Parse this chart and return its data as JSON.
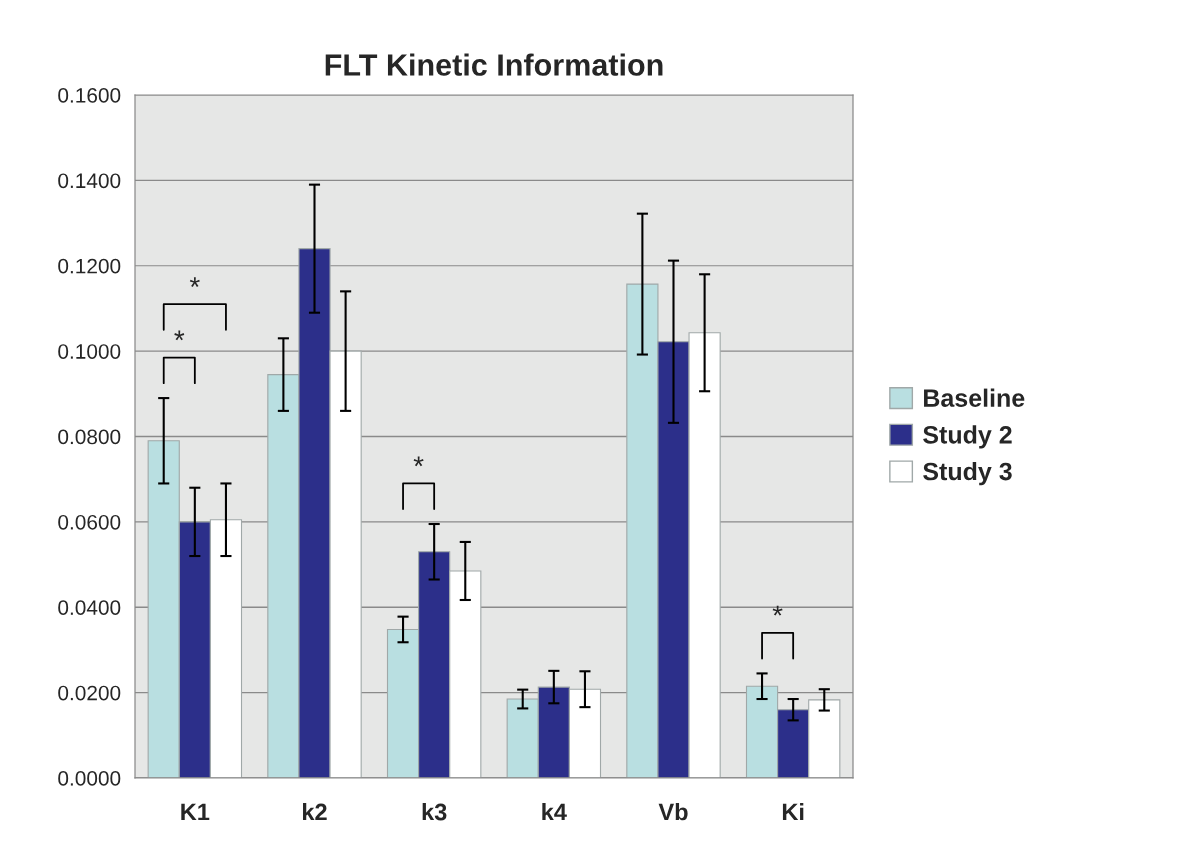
{
  "chart_data": {
    "type": "bar",
    "title": "FLT Kinetic Information",
    "categories": [
      "K1",
      "k2",
      "k3",
      "k4",
      "Vb",
      "Ki"
    ],
    "series": [
      {
        "name": "Baseline",
        "color": "#b9dfe1",
        "values": [
          0.079,
          0.0945,
          0.0348,
          0.0185,
          0.1157,
          0.0215
        ],
        "errors": [
          0.01,
          0.0085,
          0.003,
          0.0022,
          0.0165,
          0.003
        ]
      },
      {
        "name": "Study 2",
        "color": "#2c2f8a",
        "values": [
          0.06,
          0.124,
          0.053,
          0.0213,
          0.1022,
          0.016
        ],
        "errors": [
          0.008,
          0.015,
          0.0065,
          0.0038,
          0.019,
          0.0025
        ]
      },
      {
        "name": "Study 3",
        "color": "#ffffff",
        "values": [
          0.0605,
          0.1,
          0.0485,
          0.0208,
          0.1043,
          0.0183
        ],
        "errors": [
          0.0085,
          0.014,
          0.0068,
          0.0042,
          0.0137,
          0.0025
        ]
      }
    ],
    "ylim": [
      0,
      0.16
    ],
    "yticks": [
      {
        "value": 0,
        "label": "0.0000"
      },
      {
        "value": 0.02,
        "label": "0.0200"
      },
      {
        "value": 0.04,
        "label": "0.0400"
      },
      {
        "value": 0.06,
        "label": "0.0600"
      },
      {
        "value": 0.08,
        "label": "0.0800"
      },
      {
        "value": 0.1,
        "label": "0.1000"
      },
      {
        "value": 0.12,
        "label": "0.1200"
      },
      {
        "value": 0.14,
        "label": "0.1400"
      },
      {
        "value": 0.16,
        "label": "0.1600"
      }
    ],
    "annotations": [
      "*",
      "*",
      "*",
      "*"
    ],
    "grid": "y",
    "legend": "right"
  }
}
